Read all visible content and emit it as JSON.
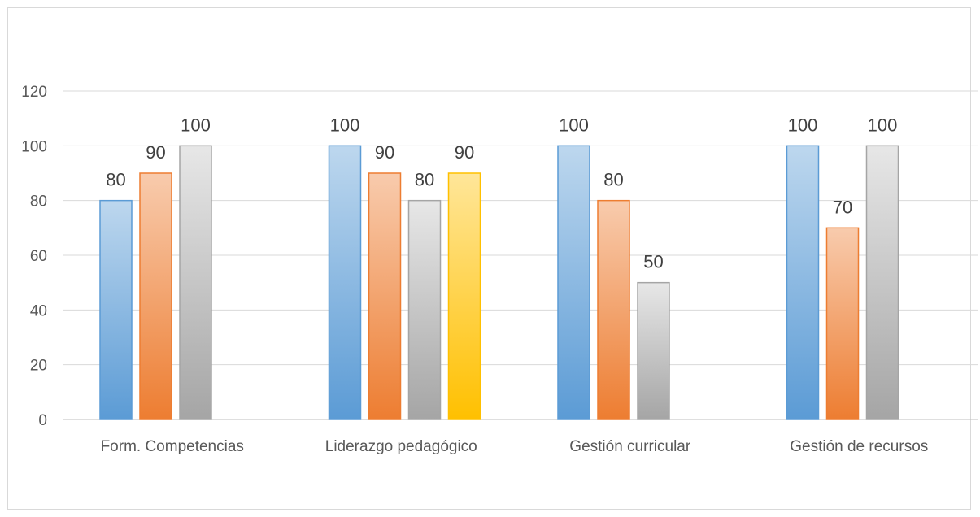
{
  "chart_data": {
    "type": "bar",
    "title": "",
    "xlabel": "",
    "ylabel": "",
    "ylim": [
      0,
      120
    ],
    "yticks": [
      0,
      20,
      40,
      60,
      80,
      100,
      120
    ],
    "grid": true,
    "legend": "none",
    "categories": [
      "Form. Competencias",
      "Liderazgo pedagógico",
      "Gestión curricular",
      "Gestión de recursos"
    ],
    "series": [
      {
        "values": [
          80,
          100,
          100,
          100
        ],
        "color": "#5b9bd5",
        "color_light": "#bdd7ee"
      },
      {
        "values": [
          90,
          90,
          80,
          70
        ],
        "color": "#ed7d31",
        "color_light": "#f8cbad"
      },
      {
        "values": [
          100,
          80,
          50,
          100
        ],
        "color": "#a5a5a5",
        "color_light": "#e7e7e7"
      },
      {
        "values": [
          null,
          90,
          null,
          null
        ],
        "color": "#ffc000",
        "color_light": "#ffe699"
      }
    ]
  }
}
